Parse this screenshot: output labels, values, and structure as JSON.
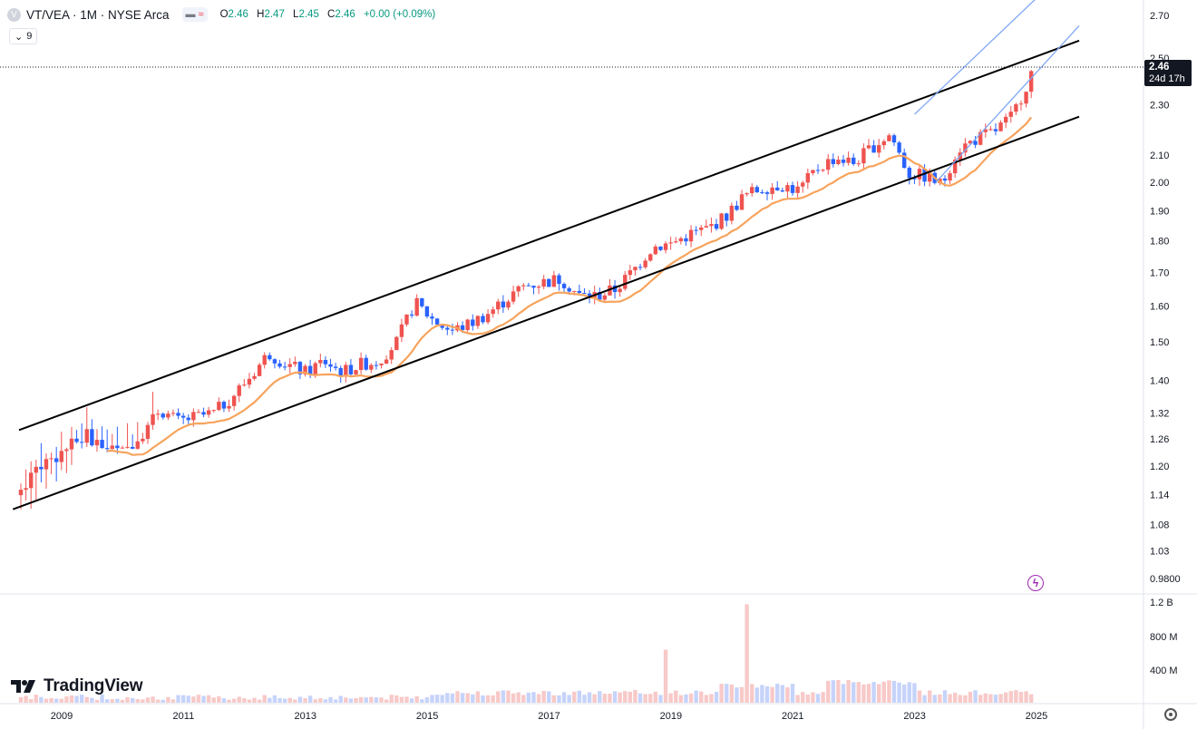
{
  "header": {
    "symbol": "VT/VEA · 1M · NYSE Arca",
    "symbol_icon": "V",
    "pill_dash": "▬",
    "pill_wave": "≈",
    "ohlc": {
      "o_label": "O",
      "o": "2.46",
      "h_label": "H",
      "h": "2.47",
      "l_label": "L",
      "l": "2.45",
      "c_label": "C",
      "c": "2.46",
      "change": "+0.00 (+0.09%)"
    },
    "indicator_chevron": "⌄",
    "indicator_value": "9"
  },
  "price_tag": {
    "price": "2.46",
    "countdown": "24d 17h"
  },
  "brand": "TradingView",
  "colors": {
    "up": "#089981",
    "bull_candle": "#ef5350",
    "bear_candle": "#2962ff",
    "ma": "#f7a35c",
    "channel": "#000000",
    "channel_blue": "#7fa7f5"
  },
  "chart_data": {
    "type": "candlestick",
    "title": "VT/VEA · 1M · NYSE Arca",
    "y_scale": "log",
    "y_ticks": [
      "2.70",
      "2.50",
      "2.30",
      "2.10",
      "2.00",
      "1.90",
      "1.80",
      "1.70",
      "1.60",
      "1.50",
      "1.40",
      "1.32",
      "1.26",
      "1.20",
      "1.14",
      "1.08",
      "1.03",
      "0.9800"
    ],
    "x_ticks": [
      "2009",
      "2011",
      "2013",
      "2015",
      "2017",
      "2019",
      "2021",
      "2023",
      "2025"
    ],
    "volume_ticks": [
      "1.2 B",
      "800 M",
      "400 M"
    ],
    "last_price": 2.46,
    "ma_period": 9,
    "monthly_close_anchors": [
      {
        "t": 2008.33,
        "v": 1.15
      },
      {
        "t": 2008.6,
        "v": 1.2
      },
      {
        "t": 2008.9,
        "v": 1.22
      },
      {
        "t": 2009.1,
        "v": 1.24
      },
      {
        "t": 2009.4,
        "v": 1.27
      },
      {
        "t": 2009.7,
        "v": 1.24
      },
      {
        "t": 2010.0,
        "v": 1.23
      },
      {
        "t": 2010.3,
        "v": 1.27
      },
      {
        "t": 2010.6,
        "v": 1.33
      },
      {
        "t": 2010.9,
        "v": 1.3
      },
      {
        "t": 2011.2,
        "v": 1.31
      },
      {
        "t": 2011.5,
        "v": 1.32
      },
      {
        "t": 2011.8,
        "v": 1.36
      },
      {
        "t": 2012.1,
        "v": 1.41
      },
      {
        "t": 2012.4,
        "v": 1.47
      },
      {
        "t": 2012.7,
        "v": 1.44
      },
      {
        "t": 2013.0,
        "v": 1.42
      },
      {
        "t": 2013.3,
        "v": 1.45
      },
      {
        "t": 2013.6,
        "v": 1.42
      },
      {
        "t": 2013.9,
        "v": 1.44
      },
      {
        "t": 2014.2,
        "v": 1.45
      },
      {
        "t": 2014.5,
        "v": 1.5
      },
      {
        "t": 2014.8,
        "v": 1.61
      },
      {
        "t": 2015.1,
        "v": 1.56
      },
      {
        "t": 2015.4,
        "v": 1.53
      },
      {
        "t": 2015.7,
        "v": 1.55
      },
      {
        "t": 2016.0,
        "v": 1.58
      },
      {
        "t": 2016.3,
        "v": 1.62
      },
      {
        "t": 2016.6,
        "v": 1.66
      },
      {
        "t": 2016.9,
        "v": 1.67
      },
      {
        "t": 2017.2,
        "v": 1.68
      },
      {
        "t": 2017.5,
        "v": 1.63
      },
      {
        "t": 2017.8,
        "v": 1.63
      },
      {
        "t": 2018.1,
        "v": 1.65
      },
      {
        "t": 2018.4,
        "v": 1.71
      },
      {
        "t": 2018.7,
        "v": 1.78
      },
      {
        "t": 2019.0,
        "v": 1.79
      },
      {
        "t": 2019.3,
        "v": 1.82
      },
      {
        "t": 2019.6,
        "v": 1.84
      },
      {
        "t": 2019.9,
        "v": 1.88
      },
      {
        "t": 2020.2,
        "v": 1.95
      },
      {
        "t": 2020.5,
        "v": 1.98
      },
      {
        "t": 2020.8,
        "v": 1.99
      },
      {
        "t": 2021.1,
        "v": 1.97
      },
      {
        "t": 2021.4,
        "v": 2.05
      },
      {
        "t": 2021.7,
        "v": 2.09
      },
      {
        "t": 2022.0,
        "v": 2.07
      },
      {
        "t": 2022.3,
        "v": 2.13
      },
      {
        "t": 2022.6,
        "v": 2.18
      },
      {
        "t": 2022.9,
        "v": 2.03
      },
      {
        "t": 2023.2,
        "v": 2.02
      },
      {
        "t": 2023.45,
        "v": 1.99
      },
      {
        "t": 2023.7,
        "v": 2.12
      },
      {
        "t": 2024.0,
        "v": 2.16
      },
      {
        "t": 2024.3,
        "v": 2.19
      },
      {
        "t": 2024.6,
        "v": 2.25
      },
      {
        "t": 2024.85,
        "v": 2.39
      },
      {
        "t": 2024.95,
        "v": 2.46
      }
    ],
    "channel_lines": [
      {
        "name": "upper",
        "from": {
          "t": 2008.3,
          "v": 1.28
        },
        "to": {
          "t": 2025.7,
          "v": 2.58
        }
      },
      {
        "name": "lower",
        "from": {
          "t": 2008.2,
          "v": 1.11
        },
        "to": {
          "t": 2025.7,
          "v": 2.25
        }
      },
      {
        "name": "blue-upper",
        "from": {
          "t": 2023.0,
          "v": 2.26
        },
        "to": {
          "t": 2025.55,
          "v": 2.95
        }
      },
      {
        "name": "blue-lower",
        "from": {
          "t": 2023.35,
          "v": 2.0
        },
        "to": {
          "t": 2025.7,
          "v": 2.65
        }
      }
    ]
  }
}
